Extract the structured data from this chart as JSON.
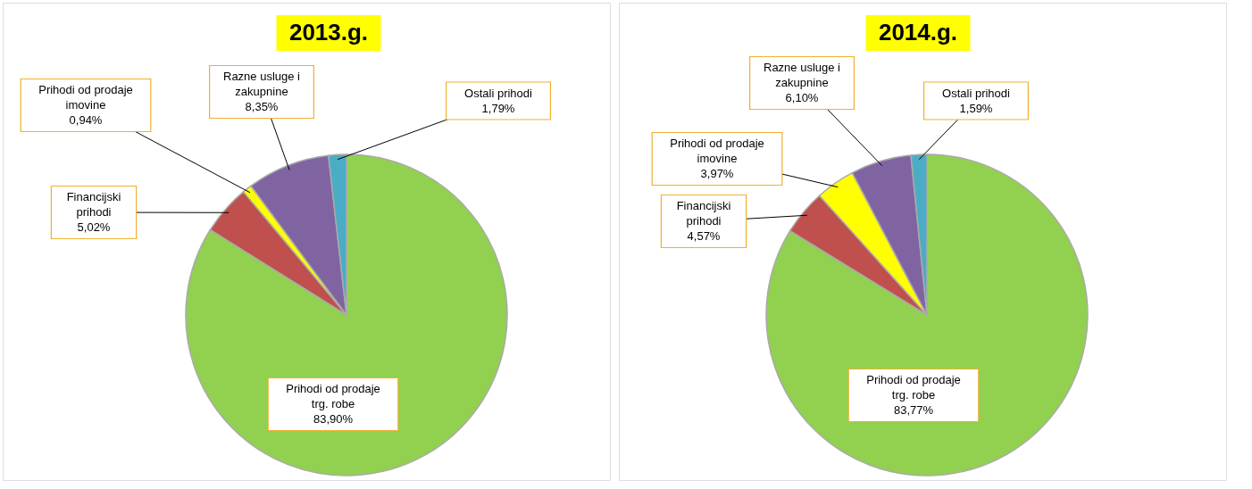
{
  "chart_data": [
    {
      "type": "pie",
      "title": "2013.g.",
      "categories": [
        "Prihodi od prodaje trg. robe",
        "Financijski prihodi",
        "Prihodi od prodaje imovine",
        "Razne usluge i zakupnine",
        "Ostali prihodi"
      ],
      "values": [
        83.9,
        5.02,
        0.94,
        8.35,
        1.79
      ],
      "colors": [
        "#92d050",
        "#c0504d",
        "#ffff00",
        "#8064a2",
        "#4bacc6"
      ],
      "value_labels": [
        "83,90%",
        "5,02%",
        "0,94%",
        "8,35%",
        "1,79%"
      ]
    },
    {
      "type": "pie",
      "title": "2014.g.",
      "categories": [
        "Prihodi od prodaje trg. robe",
        "Financijski prihodi",
        "Prihodi od prodaje imovine",
        "Razne usluge i zakupnine",
        "Ostali prihodi"
      ],
      "values": [
        83.77,
        4.57,
        3.97,
        6.1,
        1.59
      ],
      "colors": [
        "#92d050",
        "#c0504d",
        "#ffff00",
        "#8064a2",
        "#4bacc6"
      ],
      "value_labels": [
        "83,77%",
        "4,57%",
        "3,97%",
        "6,10%",
        "1,59%"
      ]
    }
  ]
}
